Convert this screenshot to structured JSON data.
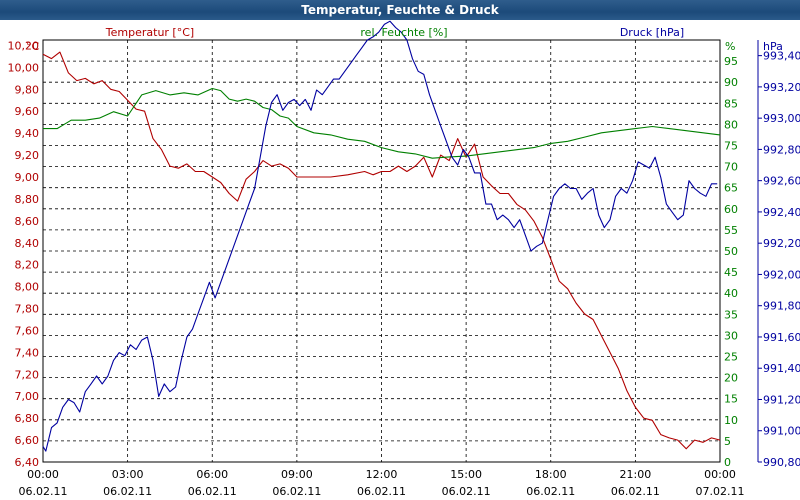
{
  "title": "Temperatur, Feuchte & Druck",
  "chart_data": {
    "type": "line",
    "title": "Temperatur, Feuchte & Druck",
    "colors": {
      "temperature": "#b00000",
      "humidity": "#008000",
      "pressure": "#0000a0",
      "grid": "#000000"
    },
    "x_ticks": [
      {
        "time": "00:00",
        "date": "06.02.11"
      },
      {
        "time": "03:00",
        "date": "06.02.11"
      },
      {
        "time": "06:00",
        "date": "06.02.11"
      },
      {
        "time": "09:00",
        "date": "06.02.11"
      },
      {
        "time": "12:00",
        "date": "06.02.11"
      },
      {
        "time": "15:00",
        "date": "06.02.11"
      },
      {
        "time": "18:00",
        "date": "06.02.11"
      },
      {
        "time": "21:00",
        "date": "06.02.11"
      },
      {
        "time": "00:00",
        "date": "07.02.11"
      }
    ],
    "xlim": [
      0,
      24
    ],
    "axes": {
      "temperature": {
        "label": "Temperatur [°C]",
        "unit": "°C",
        "ylim": [
          6.4,
          10.25
        ],
        "ticks": [
          "6,40",
          "6,60",
          "6,80",
          "7,00",
          "7,20",
          "7,40",
          "7,60",
          "7,80",
          "8,00",
          "8,20",
          "8,40",
          "8,60",
          "8,80",
          "9,00",
          "9,20",
          "9,40",
          "9,60",
          "9,80",
          "10,00",
          "10,20"
        ]
      },
      "humidity": {
        "label": "rel. Feuchte [%]",
        "unit": "%",
        "ylim": [
          0,
          100
        ],
        "ticks": [
          "0",
          "5",
          "10",
          "15",
          "20",
          "25",
          "30",
          "35",
          "40",
          "45",
          "50",
          "55",
          "60",
          "65",
          "70",
          "75",
          "80",
          "85",
          "90",
          "95"
        ]
      },
      "pressure": {
        "label": "Druck [hPa]",
        "unit": "hPa",
        "ylim": [
          990.8,
          993.5
        ],
        "ticks": [
          "990,80",
          "991,00",
          "991,20",
          "991,40",
          "991,60",
          "991,80",
          "992,00",
          "992,20",
          "992,40",
          "992,60",
          "992,80",
          "993,00",
          "993,20",
          "993,40"
        ]
      }
    },
    "series": [
      {
        "name": "Temperatur [°C]",
        "axis": "temperature",
        "x": [
          0,
          0.3,
          0.6,
          0.9,
          1.2,
          1.5,
          1.8,
          2.1,
          2.4,
          2.7,
          3.0,
          3.3,
          3.6,
          3.9,
          4.2,
          4.5,
          4.8,
          5.1,
          5.4,
          5.7,
          6.0,
          6.3,
          6.6,
          6.9,
          7.2,
          7.5,
          7.8,
          8.1,
          8.4,
          8.7,
          9.0,
          9.6,
          10.2,
          10.8,
          11.4,
          11.7,
          12.0,
          12.3,
          12.6,
          12.9,
          13.2,
          13.5,
          13.8,
          14.1,
          14.4,
          14.7,
          15.0,
          15.3,
          15.6,
          15.9,
          16.2,
          16.5,
          16.8,
          17.1,
          17.4,
          17.7,
          18.0,
          18.3,
          18.6,
          18.9,
          19.2,
          19.5,
          19.8,
          20.1,
          20.4,
          20.7,
          21.0,
          21.3,
          21.6,
          21.9,
          22.2,
          22.5,
          22.8,
          23.1,
          23.4,
          23.7,
          24.0
        ],
        "values": [
          10.12,
          10.08,
          10.14,
          9.95,
          9.88,
          9.9,
          9.85,
          9.88,
          9.8,
          9.78,
          9.7,
          9.62,
          9.6,
          9.35,
          9.25,
          9.1,
          9.08,
          9.12,
          9.05,
          9.05,
          9.0,
          8.95,
          8.85,
          8.78,
          8.98,
          9.05,
          9.15,
          9.1,
          9.12,
          9.08,
          9.0,
          9.0,
          9.0,
          9.02,
          9.05,
          9.02,
          9.05,
          9.05,
          9.1,
          9.05,
          9.1,
          9.18,
          9.0,
          9.2,
          9.15,
          9.35,
          9.18,
          9.3,
          9.0,
          8.92,
          8.85,
          8.85,
          8.75,
          8.7,
          8.6,
          8.45,
          8.25,
          8.05,
          7.98,
          7.85,
          7.75,
          7.7,
          7.55,
          7.4,
          7.25,
          7.05,
          6.9,
          6.8,
          6.78,
          6.65,
          6.62,
          6.6,
          6.52,
          6.6,
          6.58,
          6.62,
          6.6
        ]
      },
      {
        "name": "rel. Feuchte [%]",
        "axis": "humidity",
        "x": [
          0,
          0.5,
          1.0,
          1.5,
          2.0,
          2.5,
          3.0,
          3.5,
          4.0,
          4.5,
          5.0,
          5.5,
          6.0,
          6.3,
          6.6,
          6.9,
          7.2,
          7.5,
          7.8,
          8.1,
          8.4,
          8.7,
          9.0,
          9.6,
          10.2,
          10.8,
          11.4,
          12.0,
          12.6,
          13.2,
          13.8,
          14.4,
          15.0,
          15.6,
          16.2,
          16.8,
          17.4,
          18.0,
          18.6,
          19.2,
          19.8,
          20.4,
          21.0,
          21.6,
          22.2,
          22.8,
          23.4,
          24.0
        ],
        "values": [
          79,
          79,
          81,
          81,
          81.5,
          83,
          82,
          87,
          88,
          87,
          87.5,
          87,
          88.5,
          88,
          86,
          85.5,
          86,
          85.5,
          84,
          83.5,
          82,
          81.5,
          79.5,
          78,
          77.5,
          76.5,
          76,
          74.5,
          73.5,
          73,
          72,
          72.3,
          72.5,
          73,
          73.5,
          74,
          74.5,
          75.5,
          76,
          77,
          78,
          78.5,
          79,
          79.5,
          79,
          78.5,
          78,
          77.5
        ]
      },
      {
        "name": "Druck [hPa]",
        "axis": "pressure",
        "x": [
          0,
          0.1,
          0.3,
          0.5,
          0.7,
          0.9,
          1.1,
          1.3,
          1.5,
          1.7,
          1.9,
          2.1,
          2.3,
          2.5,
          2.7,
          2.9,
          3.1,
          3.3,
          3.5,
          3.7,
          3.9,
          4.1,
          4.3,
          4.5,
          4.7,
          4.9,
          5.1,
          5.3,
          5.5,
          5.7,
          5.9,
          6.1,
          6.3,
          6.5,
          6.7,
          6.9,
          7.1,
          7.3,
          7.5,
          7.7,
          7.9,
          8.1,
          8.3,
          8.5,
          8.7,
          8.9,
          9.1,
          9.3,
          9.5,
          9.7,
          9.9,
          10.1,
          10.3,
          10.5,
          10.7,
          10.9,
          11.1,
          11.3,
          11.5,
          11.7,
          11.9,
          12.1,
          12.3,
          12.5,
          12.7,
          12.9,
          13.1,
          13.3,
          13.5,
          13.7,
          13.9,
          14.1,
          14.3,
          14.5,
          14.7,
          14.9,
          15.1,
          15.3,
          15.5,
          15.7,
          15.9,
          16.1,
          16.3,
          16.5,
          16.7,
          16.9,
          17.1,
          17.3,
          17.5,
          17.7,
          17.9,
          18.1,
          18.3,
          18.5,
          18.7,
          18.9,
          19.1,
          19.3,
          19.5,
          19.7,
          19.9,
          20.1,
          20.3,
          20.5,
          20.7,
          20.9,
          21.1,
          21.3,
          21.5,
          21.7,
          21.9,
          22.1,
          22.3,
          22.5,
          22.7,
          22.9,
          23.1,
          23.3,
          23.5,
          23.7,
          23.9
        ],
        "values": [
          990.9,
          990.87,
          991.02,
          991.05,
          991.15,
          991.2,
          991.18,
          991.12,
          991.25,
          991.3,
          991.35,
          991.3,
          991.35,
          991.45,
          991.5,
          991.48,
          991.55,
          991.52,
          991.58,
          991.6,
          991.45,
          991.22,
          991.3,
          991.25,
          991.28,
          991.45,
          991.6,
          991.65,
          991.75,
          991.85,
          991.95,
          991.85,
          991.95,
          992.05,
          992.15,
          992.25,
          992.35,
          992.45,
          992.55,
          992.75,
          992.95,
          993.1,
          993.15,
          993.05,
          993.1,
          993.12,
          993.08,
          993.12,
          993.05,
          993.18,
          993.15,
          993.2,
          993.25,
          993.25,
          993.3,
          993.35,
          993.4,
          993.45,
          993.5,
          993.52,
          993.55,
          993.6,
          993.62,
          993.58,
          993.55,
          993.5,
          993.38,
          993.3,
          993.28,
          993.15,
          993.05,
          992.95,
          992.85,
          992.75,
          992.7,
          992.8,
          992.75,
          992.65,
          992.65,
          992.45,
          992.45,
          992.35,
          992.38,
          992.35,
          992.3,
          992.35,
          992.25,
          992.15,
          992.18,
          992.2,
          992.35,
          992.5,
          992.55,
          992.58,
          992.55,
          992.55,
          992.48,
          992.52,
          992.55,
          992.38,
          992.3,
          992.35,
          992.5,
          992.55,
          992.52,
          992.6,
          992.72,
          992.7,
          992.68,
          992.75,
          992.62,
          992.45,
          992.4,
          992.35,
          992.38,
          992.6,
          992.55,
          992.52,
          992.5,
          992.58,
          992.58
        ]
      }
    ]
  }
}
